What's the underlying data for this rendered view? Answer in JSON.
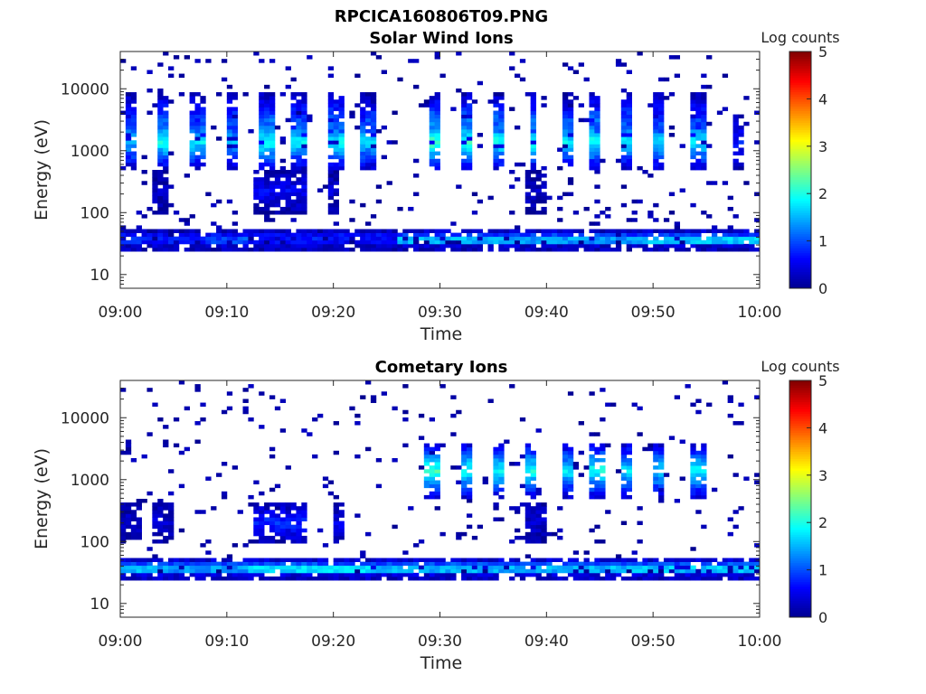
{
  "figure_title": "RPCICA160806T09.PNG",
  "colormap": [
    "#00008f",
    "#0000ff",
    "#0080ff",
    "#00ffff",
    "#80ff80",
    "#ffff00",
    "#ff8000",
    "#ff0000",
    "#800000"
  ],
  "chart_data": [
    {
      "type": "heatmap",
      "title": "Solar Wind Ions",
      "xlabel": "Time",
      "ylabel": "Energy (eV)",
      "x_tick_labels": [
        "09:00",
        "09:10",
        "09:20",
        "09:30",
        "09:40",
        "09:50",
        "10:00"
      ],
      "y_tick_labels": [
        "10",
        "100",
        "1000",
        "10000"
      ],
      "y_scale": "log",
      "ylim": [
        6,
        40000
      ],
      "colorbar": {
        "label": "Log counts",
        "range": [
          0,
          5
        ],
        "ticks": [
          "0",
          "1",
          "2",
          "3",
          "4",
          "5"
        ]
      },
      "grid": false,
      "rows": [
        {
          "energy": 36,
          "spans": [
            [
              0,
              2,
              1.2
            ],
            [
              2,
              8,
              1.0
            ],
            [
              8,
              12,
              1.4
            ],
            [
              12,
              20,
              1.0
            ],
            [
              20,
              26,
              0.9
            ],
            [
              26,
              36,
              2.2
            ],
            [
              36,
              48,
              2.0
            ],
            [
              48,
              60,
              2.3
            ]
          ]
        },
        {
          "energy": 28,
          "spans": [
            [
              0,
              60,
              0.4
            ]
          ]
        },
        {
          "energy": 44,
          "spans": [
            [
              0,
              26,
              0.6
            ],
            [
              26,
              60,
              0.9
            ]
          ]
        },
        {
          "energy": 1400,
          "spans": [
            [
              0.3,
              1.6,
              1.6
            ],
            [
              3.5,
              4.4,
              2.0
            ],
            [
              6.5,
              7.8,
              1.8
            ],
            [
              10,
              11,
              1.6
            ],
            [
              13,
              14.5,
              2.0
            ],
            [
              16,
              17.3,
              1.8
            ],
            [
              19.5,
              20.8,
              1.9
            ],
            [
              22.7,
              24,
              1.7
            ],
            [
              29,
              30,
              2.3
            ],
            [
              32,
              33,
              2.1
            ],
            [
              35,
              36,
              2.0
            ],
            [
              38.3,
              39.2,
              2.0
            ],
            [
              41.3,
              42.3,
              1.8
            ],
            [
              44.2,
              45.1,
              2.0
            ],
            [
              47,
              48,
              1.8
            ],
            [
              50,
              51.2,
              1.7
            ],
            [
              53.5,
              54.8,
              1.9
            ],
            [
              57.5,
              58.3,
              0.7
            ]
          ]
        },
        {
          "energy": 3000,
          "spans": [
            [
              0.3,
              1.6,
              1.0
            ],
            [
              3.5,
              4.4,
              1.2
            ],
            [
              6.5,
              7.8,
              1.0
            ],
            [
              10,
              11,
              1.0
            ],
            [
              13,
              14.5,
              1.2
            ],
            [
              16,
              17.3,
              1.0
            ],
            [
              19.5,
              20.8,
              1.2
            ],
            [
              22.7,
              24,
              1.0
            ],
            [
              29,
              30,
              1.4
            ],
            [
              32,
              33,
              1.3
            ],
            [
              35,
              36,
              1.2
            ],
            [
              38.3,
              39.2,
              1.2
            ],
            [
              41.3,
              42.3,
              1.0
            ],
            [
              44.2,
              45.1,
              1.2
            ],
            [
              47,
              48,
              1.1
            ],
            [
              50,
              51.2,
              1.0
            ],
            [
              53.5,
              54.8,
              1.0
            ]
          ]
        },
        {
          "energy": 220,
          "spans": [
            [
              12.5,
              17.5,
              0.6
            ],
            [
              3,
              4.5,
              0.3
            ],
            [
              19.5,
              20.5,
              0.4
            ],
            [
              38,
              40,
              0.3
            ]
          ]
        }
      ]
    },
    {
      "type": "heatmap",
      "title": "Cometary Ions",
      "xlabel": "Time",
      "ylabel": "Energy (eV)",
      "x_tick_labels": [
        "09:00",
        "09:10",
        "09:20",
        "09:30",
        "09:40",
        "09:50",
        "10:00"
      ],
      "y_tick_labels": [
        "10",
        "100",
        "1000",
        "10000"
      ],
      "y_scale": "log",
      "ylim": [
        6,
        40000
      ],
      "colorbar": {
        "label": "Log counts",
        "range": [
          0,
          5
        ],
        "ticks": [
          "0",
          "1",
          "2",
          "3",
          "4",
          "5"
        ]
      },
      "grid": false,
      "rows": [
        {
          "energy": 36,
          "spans": [
            [
              0,
              3,
              2.3
            ],
            [
              3,
              12,
              2.0
            ],
            [
              12,
              24,
              2.5
            ],
            [
              24,
              36,
              2.2
            ],
            [
              36,
              48,
              2.2
            ],
            [
              48,
              60,
              2.3
            ]
          ]
        },
        {
          "energy": 28,
          "spans": [
            [
              0,
              60,
              0.5
            ]
          ]
        },
        {
          "energy": 44,
          "spans": [
            [
              0,
              60,
              1.0
            ]
          ]
        },
        {
          "energy": 1400,
          "spans": [
            [
              28.5,
              30,
              2.2
            ],
            [
              32,
              33,
              2.0
            ],
            [
              35,
              36,
              1.9
            ],
            [
              38,
              39,
              2.0
            ],
            [
              41.3,
              42.3,
              1.8
            ],
            [
              44,
              45.5,
              2.0
            ],
            [
              47,
              48,
              1.8
            ],
            [
              50,
              51,
              1.7
            ],
            [
              53.5,
              54.8,
              1.9
            ]
          ]
        },
        {
          "energy": 200,
          "spans": [
            [
              12.5,
              17.5,
              0.8
            ],
            [
              0,
              2,
              0.3
            ],
            [
              3,
              5,
              0.4
            ],
            [
              20,
              21,
              0.5
            ],
            [
              38,
              40,
              0.4
            ]
          ]
        }
      ]
    }
  ]
}
